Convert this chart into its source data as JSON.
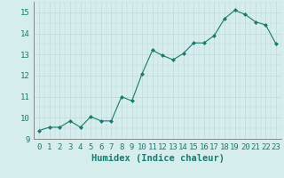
{
  "x": [
    0,
    1,
    2,
    3,
    4,
    5,
    6,
    7,
    8,
    9,
    10,
    11,
    12,
    13,
    14,
    15,
    16,
    17,
    18,
    19,
    20,
    21,
    22,
    23
  ],
  "y": [
    9.4,
    9.55,
    9.55,
    9.85,
    9.55,
    10.05,
    9.85,
    9.85,
    11.0,
    10.8,
    12.1,
    13.2,
    12.95,
    12.75,
    13.05,
    13.55,
    13.55,
    13.9,
    14.7,
    15.1,
    14.9,
    14.55,
    14.4,
    13.5
  ],
  "xlabel": "Humidex (Indice chaleur)",
  "ylim": [
    9,
    15.5
  ],
  "xlim": [
    -0.5,
    23.5
  ],
  "yticks": [
    9,
    10,
    11,
    12,
    13,
    14,
    15
  ],
  "xticks": [
    0,
    1,
    2,
    3,
    4,
    5,
    6,
    7,
    8,
    9,
    10,
    11,
    12,
    13,
    14,
    15,
    16,
    17,
    18,
    19,
    20,
    21,
    22,
    23
  ],
  "line_color": "#1a7a6e",
  "marker": "D",
  "marker_size": 2.0,
  "bg_color": "#d5eded",
  "grid_color_major": "#c0d8d8",
  "grid_color_minor": "#c0d8d8",
  "tick_label_fontsize": 6.5,
  "xlabel_fontsize": 7.5,
  "spine_color": "#888888"
}
